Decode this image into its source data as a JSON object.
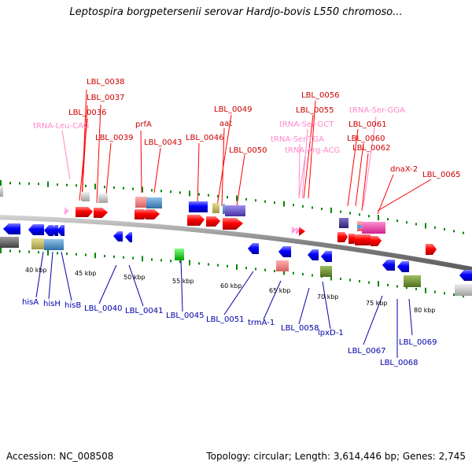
{
  "header": {
    "title": "Leptospira borgpetersenii serovar Hardjo-bovis L550 chromoso..."
  },
  "footer": {
    "accession": "Accession: NC_008508",
    "summary": "Topology: circular; Length: 3,614,446 bp; Genes: 2,745"
  },
  "colors": {
    "forward_gene": "#ff0000",
    "reverse_gene": "#0000ff",
    "trna_label": "#ff88cc",
    "backbone": "#888888",
    "tick": "#008800"
  },
  "map": {
    "kbp_ticks": [
      "40 kbp",
      "45 kbp",
      "50 kbp",
      "55 kbp",
      "60 kbp",
      "65 kbp",
      "70 kbp",
      "75 kbp",
      "80 kbp"
    ],
    "top_labels": {
      "lbl_0038": "LBL_0038",
      "lbl_0037": "LBL_0037",
      "lbl_0036": "LBL_0036",
      "trna_leu_cag": "tRNA-Leu-CAG",
      "lbl_0039": "LBL_0039",
      "prfa": "prfA",
      "lbl_0043": "LBL_0043",
      "lbl_0046": "LBL_0046",
      "lbl_0049": "LBL_0049",
      "aat": "aat",
      "lbl_0050": "LBL_0050",
      "lbl_0056": "LBL_0056",
      "lbl_0055": "LBL_0055",
      "trna_ser_gct": "tRNA-Ser-GCT",
      "trna_ser_tga": "tRNA-Ser-TGA",
      "trna_arg_acg": "tRNA-Arg-ACG",
      "trna_ser_gga": "tRNA-Ser-GGA",
      "lbl_0061": "LBL_0061",
      "lbl_0060": "LBL_0060",
      "lbl_0062": "LBL_0062",
      "dnax_2": "dnaX-2",
      "lbl_0065": "LBL_0065"
    },
    "bottom_labels": {
      "hisa": "hisA",
      "hish": "hisH",
      "hisb": "hisB",
      "lbl_0040": "LBL_0040",
      "lbl_0041": "LBL_0041",
      "lbl_0045": "LBL_0045",
      "lbl_0051": "LBL_0051",
      "trma_1": "trmA-1",
      "lbl_0058": "LBL_0058",
      "lpxd_1": "lpxD-1",
      "lbl_0067": "LBL_0067",
      "lbl_0068": "LBL_0068",
      "lbl_0069": "LBL_0069"
    }
  }
}
